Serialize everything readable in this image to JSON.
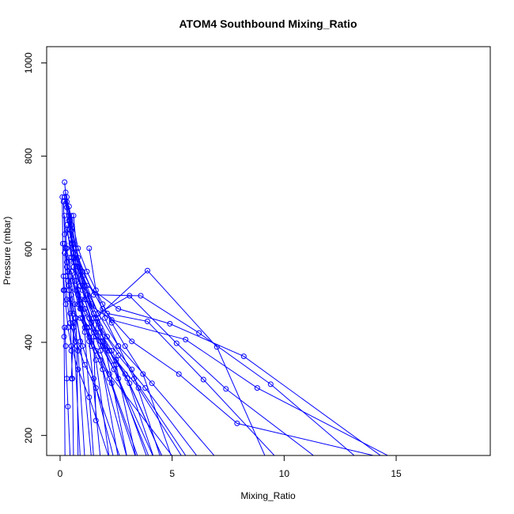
{
  "chart_data": {
    "type": "line",
    "title": "ATOM4 Southbound Mixing_Ratio",
    "xlabel": "Mixing_Ratio",
    "ylabel": "Pressure (mbar)",
    "xlim": [
      -0.6,
      19.2
    ],
    "ylim": [
      1035,
      157
    ],
    "y_reversed": true,
    "xticks": [
      0,
      5,
      10,
      15
    ],
    "yticks": [
      200,
      400,
      600,
      800,
      1000
    ],
    "grid": false,
    "color": "#0000ff",
    "series": [
      {
        "x": [
          0.2,
          0.4,
          0.5,
          0.7,
          1.4,
          2.3,
          5.6,
          8.8,
          14.9
        ],
        "y": [
          712,
          672,
          612,
          572,
          478,
          448,
          406,
          302,
          150
        ]
      },
      {
        "x": [
          0.2,
          0.3,
          0.5,
          1.0,
          1.9,
          3.2,
          5.3,
          7.9,
          14.6
        ],
        "y": [
          744,
          690,
          640,
          552,
          472,
          402,
          332,
          226,
          150
        ]
      },
      {
        "x": [
          0.25,
          0.4,
          0.6,
          1.2,
          2.6,
          4.9,
          8.2,
          14.5
        ],
        "y": [
          722,
          662,
          592,
          522,
          472,
          440,
          370,
          150
        ]
      },
      {
        "x": [
          0.3,
          0.5,
          0.8,
          1.5,
          3.6,
          6.2,
          9.4,
          13.3
        ],
        "y": [
          712,
          652,
          582,
          502,
          500,
          420,
          310,
          150
        ]
      },
      {
        "x": [
          0.4,
          0.6,
          1.0,
          1.7,
          3.1,
          5.2,
          7.4,
          11.5
        ],
        "y": [
          672,
          602,
          542,
          462,
          500,
          398,
          300,
          150
        ]
      },
      {
        "x": [
          0.5,
          0.8,
          1.2,
          2.1,
          3.9,
          6.4,
          9.7
        ],
        "y": [
          672,
          602,
          552,
          462,
          445,
          320,
          150
        ]
      },
      {
        "x": [
          0.3,
          0.5,
          0.9,
          1.6,
          3.9,
          7.0,
          9.2
        ],
        "y": [
          652,
          582,
          522,
          452,
          554,
          390,
          150
        ]
      },
      {
        "x": [
          0.2,
          0.3,
          0.4,
          0.6,
          0.9,
          1.3,
          2.2,
          5.1
        ],
        "y": [
          612,
          562,
          512,
          462,
          452,
          412,
          332,
          150
        ]
      },
      {
        "x": [
          0.2,
          0.25,
          0.3,
          0.45,
          0.7,
          1.1,
          1.6,
          2.7
        ],
        "y": [
          592,
          542,
          492,
          442,
          402,
          352,
          302,
          150
        ]
      },
      {
        "x": [
          0.15,
          0.2,
          0.25,
          0.35,
          0.5,
          0.8,
          1.3,
          2.2
        ],
        "y": [
          542,
          512,
          482,
          432,
          392,
          342,
          282,
          150
        ]
      },
      {
        "x": [
          0.2,
          0.25,
          0.3,
          0.35,
          0.45
        ],
        "y": [
          432,
          392,
          322,
          262,
          150
        ]
      },
      {
        "x": [
          0.4,
          0.45,
          0.5,
          0.55,
          0.6
        ],
        "y": [
          522,
          462,
          382,
          322,
          150
        ]
      },
      {
        "x": [
          1.6,
          1.5,
          1.7,
          2.0,
          3.0
        ],
        "y": [
          232,
          412,
          452,
          392,
          150
        ]
      },
      {
        "x": [
          0.5,
          0.6,
          0.7,
          0.75,
          0.8
        ],
        "y": [
          322,
          432,
          452,
          392,
          150
        ]
      },
      {
        "x": [
          0.6,
          0.8,
          1.2,
          1.8,
          2.6,
          3.8,
          6.2
        ],
        "y": [
          672,
          562,
          492,
          432,
          372,
          302,
          150
        ]
      },
      {
        "x": [
          0.3,
          0.5,
          0.9,
          1.4,
          2.1,
          3.2,
          4.5
        ],
        "y": [
          702,
          622,
          552,
          482,
          412,
          342,
          150
        ]
      },
      {
        "x": [
          0.4,
          0.7,
          1.1,
          1.7,
          2.6,
          4.1,
          7.0
        ],
        "y": [
          692,
          602,
          522,
          462,
          392,
          312,
          150
        ]
      },
      {
        "x": [
          0.2,
          0.4,
          0.7,
          1.1,
          1.6,
          2.4,
          3.9
        ],
        "y": [
          712,
          642,
          572,
          492,
          422,
          352,
          150
        ]
      },
      {
        "x": [
          0.3,
          0.6,
          1.0,
          1.5,
          2.2,
          3.1,
          4.6
        ],
        "y": [
          642,
          572,
          512,
          452,
          382,
          312,
          150
        ]
      },
      {
        "x": [
          0.25,
          0.35,
          0.5,
          0.7,
          1.0,
          1.5,
          2.4
        ],
        "y": [
          602,
          552,
          502,
          452,
          392,
          322,
          150
        ]
      },
      {
        "x": [
          0.5,
          0.7,
          0.9,
          1.2,
          1.6,
          2.3,
          3.5
        ],
        "y": [
          552,
          512,
          472,
          432,
          382,
          312,
          150
        ]
      },
      {
        "x": [
          0.8,
          0.9,
          1.1,
          1.4,
          1.9,
          2.6
        ],
        "y": [
          502,
          472,
          432,
          392,
          342,
          150
        ]
      },
      {
        "x": [
          1.1,
          1.3,
          1.5,
          1.8,
          2.2,
          3.4
        ],
        "y": [
          472,
          452,
          422,
          382,
          322,
          150
        ]
      },
      {
        "x": [
          1.3,
          1.6,
          2.0,
          2.6,
          3.3,
          5.7
        ],
        "y": [
          602,
          512,
          452,
          392,
          322,
          150
        ]
      },
      {
        "x": [
          0.9,
          1.1,
          1.4,
          1.9,
          2.6,
          4.2
        ],
        "y": [
          552,
          492,
          442,
          392,
          322,
          150
        ]
      },
      {
        "x": [
          0.6,
          0.8,
          1.1,
          1.6,
          2.4,
          4.0
        ],
        "y": [
          562,
          512,
          462,
          412,
          342,
          150
        ]
      },
      {
        "x": [
          0.7,
          0.95,
          1.3,
          1.9,
          2.9,
          4.6
        ],
        "y": [
          532,
          492,
          452,
          402,
          332,
          150
        ]
      },
      {
        "x": [
          0.4,
          0.55,
          0.8,
          1.2,
          1.8,
          3.0
        ],
        "y": [
          582,
          532,
          482,
          432,
          362,
          150
        ]
      },
      {
        "x": [
          0.2,
          0.3,
          0.45,
          0.65,
          0.9,
          1.4
        ],
        "y": [
          672,
          602,
          542,
          482,
          402,
          150
        ]
      },
      {
        "x": [
          0.15,
          0.2,
          0.3,
          0.4,
          0.6,
          0.9
        ],
        "y": [
          702,
          632,
          572,
          512,
          432,
          150
        ]
      },
      {
        "x": [
          0.1,
          0.12,
          0.15,
          0.18,
          0.22
        ],
        "y": [
          712,
          612,
          512,
          412,
          150
        ]
      },
      {
        "x": [
          1.0,
          1.3,
          1.8,
          2.5,
          3.5,
          5.5
        ],
        "y": [
          452,
          432,
          402,
          362,
          302,
          150
        ]
      },
      {
        "x": [
          1.5,
          1.8,
          2.3,
          3.0,
          4.2
        ],
        "y": [
          452,
          422,
          382,
          322,
          150
        ]
      },
      {
        "x": [
          1.9,
          2.3,
          2.9,
          3.7,
          5.0
        ],
        "y": [
          482,
          442,
          392,
          332,
          150
        ]
      },
      {
        "x": [
          0.7,
          0.9,
          1.2,
          1.6,
          2.2
        ],
        "y": [
          522,
          482,
          432,
          362,
          150
        ]
      },
      {
        "x": [
          0.35,
          0.45,
          0.6,
          0.8,
          1.1
        ],
        "y": [
          532,
          492,
          442,
          382,
          150
        ]
      },
      {
        "x": [
          1.2,
          1.5,
          1.9,
          2.5,
          3.4
        ],
        "y": [
          502,
          462,
          412,
          352,
          150
        ]
      },
      {
        "x": [
          0.55,
          0.7,
          0.95,
          1.3,
          1.8
        ],
        "y": [
          612,
          542,
          472,
          402,
          150
        ]
      },
      {
        "x": [
          0.45,
          0.6,
          0.8,
          1.1,
          1.5
        ],
        "y": [
          662,
          582,
          502,
          422,
          150
        ]
      }
    ]
  }
}
